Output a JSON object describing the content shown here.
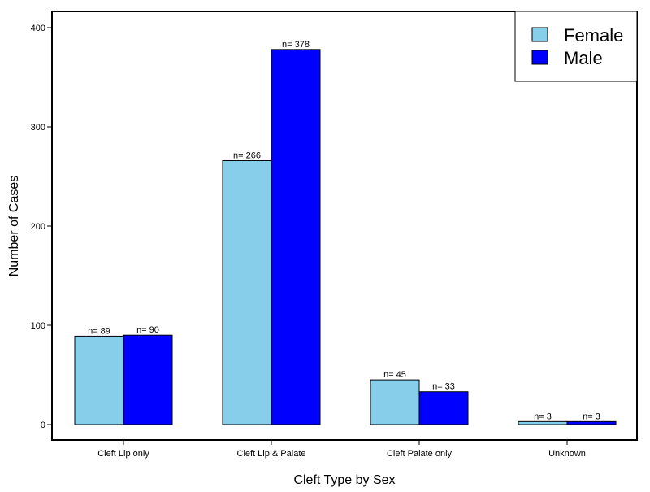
{
  "chart_data": {
    "type": "bar",
    "title": "",
    "xlabel": "Cleft Type by Sex",
    "ylabel": "Number of Cases",
    "ylim": [
      0,
      400
    ],
    "yticks": [
      0,
      100,
      200,
      300,
      400
    ],
    "grid": false,
    "legend_position": "top-right",
    "categories": [
      "Cleft Lip only",
      "Cleft Lip & Palate",
      "Cleft Palate only",
      "Unknown"
    ],
    "series": [
      {
        "name": "Female",
        "color": "#87CEEB",
        "values": [
          89,
          266,
          45,
          3
        ],
        "labels": [
          "n= 89",
          "n= 266",
          "n= 45",
          "n= 3"
        ]
      },
      {
        "name": "Male",
        "color": "#0000FF",
        "values": [
          90,
          378,
          33,
          3
        ],
        "labels": [
          "n= 90",
          "n= 378",
          "n= 33",
          "n= 3"
        ]
      }
    ]
  }
}
